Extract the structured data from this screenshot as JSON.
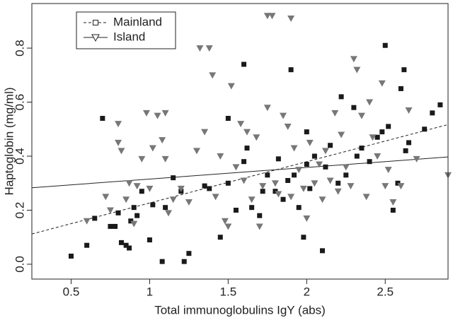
{
  "chart_data": {
    "type": "scatter",
    "x_label": "Total immunoglobulins IgY (abs)",
    "y_label": "Haptoglobin (mg/ml)",
    "xlim": [
      0.25,
      2.9
    ],
    "ylim": [
      -0.055,
      0.965
    ],
    "xticks": [
      0.5,
      1.0,
      1.5,
      2.0,
      2.5
    ],
    "yticks": [
      {
        "value": 0,
        "label": "0.0"
      },
      0.2,
      0.4,
      0.6,
      0.8
    ],
    "legend": "top-left",
    "series": [
      {
        "name": "Mainland",
        "color": "#1a1a1a",
        "marker": "square",
        "line_style": "dashed",
        "fit_x": [
          0.25,
          2.9
        ],
        "fit_y": [
          0.112,
          0.517
        ],
        "x": [
          0.5,
          0.6,
          0.65,
          0.7,
          0.75,
          0.78,
          0.8,
          0.82,
          0.85,
          0.87,
          0.88,
          0.9,
          0.92,
          0.95,
          1.0,
          1.02,
          1.08,
          1.1,
          1.15,
          1.2,
          1.22,
          1.25,
          1.35,
          1.38,
          1.45,
          1.5,
          1.5,
          1.55,
          1.6,
          1.6,
          1.62,
          1.65,
          1.7,
          1.72,
          1.75,
          1.8,
          1.82,
          1.85,
          1.88,
          1.9,
          1.92,
          1.95,
          1.98,
          2.0,
          2.0,
          2.02,
          2.05,
          2.1,
          2.12,
          2.15,
          2.2,
          2.22,
          2.25,
          2.3,
          2.32,
          2.35,
          2.4,
          2.45,
          2.48,
          2.5,
          2.52,
          2.55,
          2.58,
          2.6,
          2.62,
          2.63,
          2.65,
          2.75,
          2.8,
          2.85
        ],
        "values": [
          0.03,
          0.07,
          0.17,
          0.54,
          0.14,
          0.14,
          0.19,
          0.08,
          0.07,
          0.06,
          0.16,
          0.21,
          0.18,
          0.27,
          0.09,
          0.22,
          0.01,
          0.21,
          0.32,
          0.27,
          0.01,
          0.04,
          0.29,
          0.28,
          0.1,
          0.54,
          0.3,
          0.2,
          0.74,
          0.38,
          0.43,
          0.21,
          0.18,
          0.27,
          0.33,
          0.27,
          0.39,
          0.24,
          0.31,
          0.72,
          0.33,
          0.21,
          0.1,
          0.37,
          0.49,
          0.28,
          0.4,
          0.05,
          0.36,
          0.44,
          0.3,
          0.62,
          0.33,
          0.58,
          0.4,
          0.43,
          0.38,
          0.47,
          0.49,
          0.81,
          0.51,
          0.2,
          0.3,
          0.65,
          0.72,
          0.42,
          0.45,
          0.5,
          0.56,
          0.59
        ]
      },
      {
        "name": "Island",
        "color": "#777777",
        "marker": "triangle",
        "line_style": "solid",
        "fit_x": [
          0.25,
          2.9
        ],
        "fit_y": [
          0.283,
          0.397
        ],
        "x": [
          0.6,
          0.72,
          0.75,
          0.8,
          0.8,
          0.82,
          0.85,
          0.87,
          0.9,
          0.92,
          0.95,
          0.98,
          1.0,
          1.02,
          1.05,
          1.08,
          1.1,
          1.1,
          1.12,
          1.15,
          1.2,
          1.25,
          1.3,
          1.32,
          1.35,
          1.38,
          1.4,
          1.42,
          1.45,
          1.48,
          1.5,
          1.52,
          1.55,
          1.58,
          1.6,
          1.62,
          1.65,
          1.68,
          1.7,
          1.72,
          1.75,
          1.75,
          1.78,
          1.8,
          1.82,
          1.85,
          1.88,
          1.9,
          1.9,
          1.92,
          1.95,
          1.98,
          2.0,
          2.02,
          2.05,
          2.08,
          2.1,
          2.12,
          2.15,
          2.18,
          2.2,
          2.22,
          2.25,
          2.28,
          2.3,
          2.32,
          2.35,
          2.38,
          2.4,
          2.42,
          2.45,
          2.48,
          2.5,
          2.52,
          2.55,
          2.6,
          2.65,
          2.7,
          2.9
        ],
        "values": [
          0.16,
          0.25,
          0.2,
          0.52,
          0.45,
          0.42,
          0.24,
          0.3,
          0.15,
          0.29,
          0.39,
          0.56,
          0.28,
          0.43,
          0.55,
          0.46,
          0.39,
          0.56,
          0.19,
          0.24,
          0.28,
          0.23,
          0.42,
          0.8,
          0.49,
          0.8,
          0.7,
          0.25,
          0.4,
          0.16,
          0.14,
          0.66,
          0.36,
          0.52,
          0.31,
          0.49,
          0.24,
          0.47,
          0.14,
          0.29,
          0.92,
          0.58,
          0.92,
          0.3,
          0.26,
          0.55,
          0.51,
          0.91,
          0.25,
          0.43,
          0.35,
          0.28,
          0.17,
          0.45,
          0.3,
          0.37,
          0.24,
          0.42,
          0.31,
          0.56,
          0.27,
          0.48,
          0.36,
          0.29,
          0.76,
          0.72,
          0.55,
          0.25,
          0.6,
          0.47,
          0.4,
          0.67,
          0.29,
          0.35,
          0.23,
          0.29,
          0.57,
          0.39,
          0.33
        ]
      }
    ]
  }
}
